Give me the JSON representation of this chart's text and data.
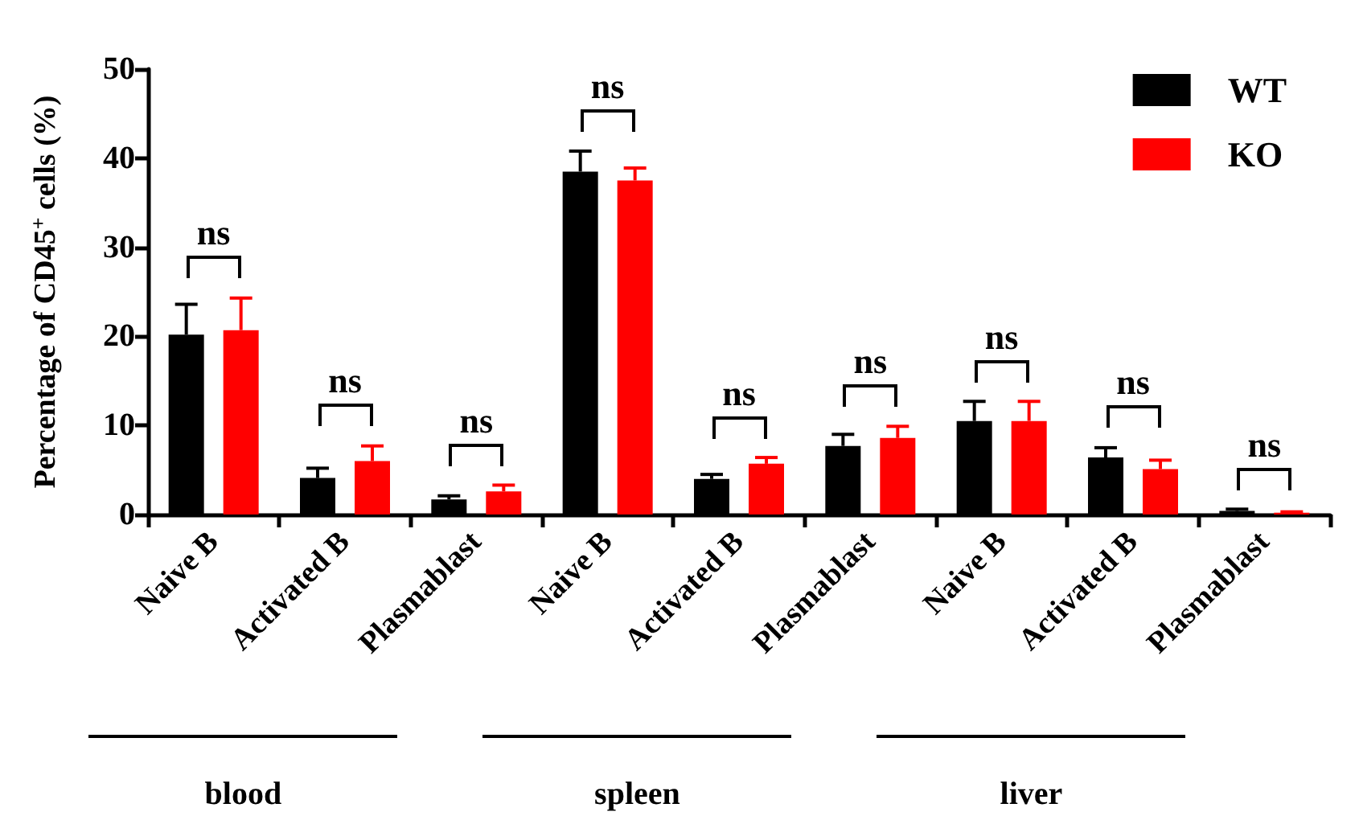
{
  "chart_data": {
    "type": "bar",
    "ylabel": "Percentage of CD45$^{+}$ cells (%)",
    "categories": [
      "Naive B",
      "Activated B",
      "Plasmablast",
      "Naive B",
      "Activated B",
      "Plasmablast",
      "Naive B",
      "Activated B",
      "Plasmablast"
    ],
    "series": [
      {
        "name": "WT",
        "color": "#000000",
        "values": [
          20.2,
          4.1,
          1.7,
          38.5,
          4.0,
          7.7,
          10.5,
          6.4,
          0.4
        ],
        "errors": [
          [
            20.2,
            23.6
          ],
          [
            4.1,
            5.2
          ],
          [
            1.7,
            2.1
          ],
          [
            38.5,
            40.8
          ],
          [
            4.0,
            4.5
          ],
          [
            7.7,
            9.0
          ],
          [
            10.5,
            12.7
          ],
          [
            6.4,
            7.5
          ],
          [
            0.4,
            0.6
          ]
        ]
      },
      {
        "name": "KO",
        "color": "#ff0000",
        "values": [
          20.7,
          6.0,
          2.6,
          37.5,
          5.7,
          8.6,
          10.5,
          5.1,
          0.2
        ],
        "errors": [
          [
            20.7,
            24.3
          ],
          [
            6.0,
            7.7
          ],
          [
            2.6,
            3.3
          ],
          [
            37.5,
            38.9
          ],
          [
            5.7,
            6.4
          ],
          [
            8.6,
            9.9
          ],
          [
            10.5,
            12.7
          ],
          [
            5.1,
            6.1
          ],
          [
            0.2,
            0.3
          ]
        ]
      }
    ],
    "ylim": [
      0,
      50
    ],
    "yticks": [
      0,
      10,
      20,
      30,
      40,
      50
    ],
    "grid": false,
    "legend": "top right",
    "annotations": [
      "ns",
      "ns",
      "ns",
      "ns",
      "ns",
      "ns",
      "ns",
      "ns",
      "ns",
      "blood",
      "spleen",
      "liver"
    ]
  }
}
